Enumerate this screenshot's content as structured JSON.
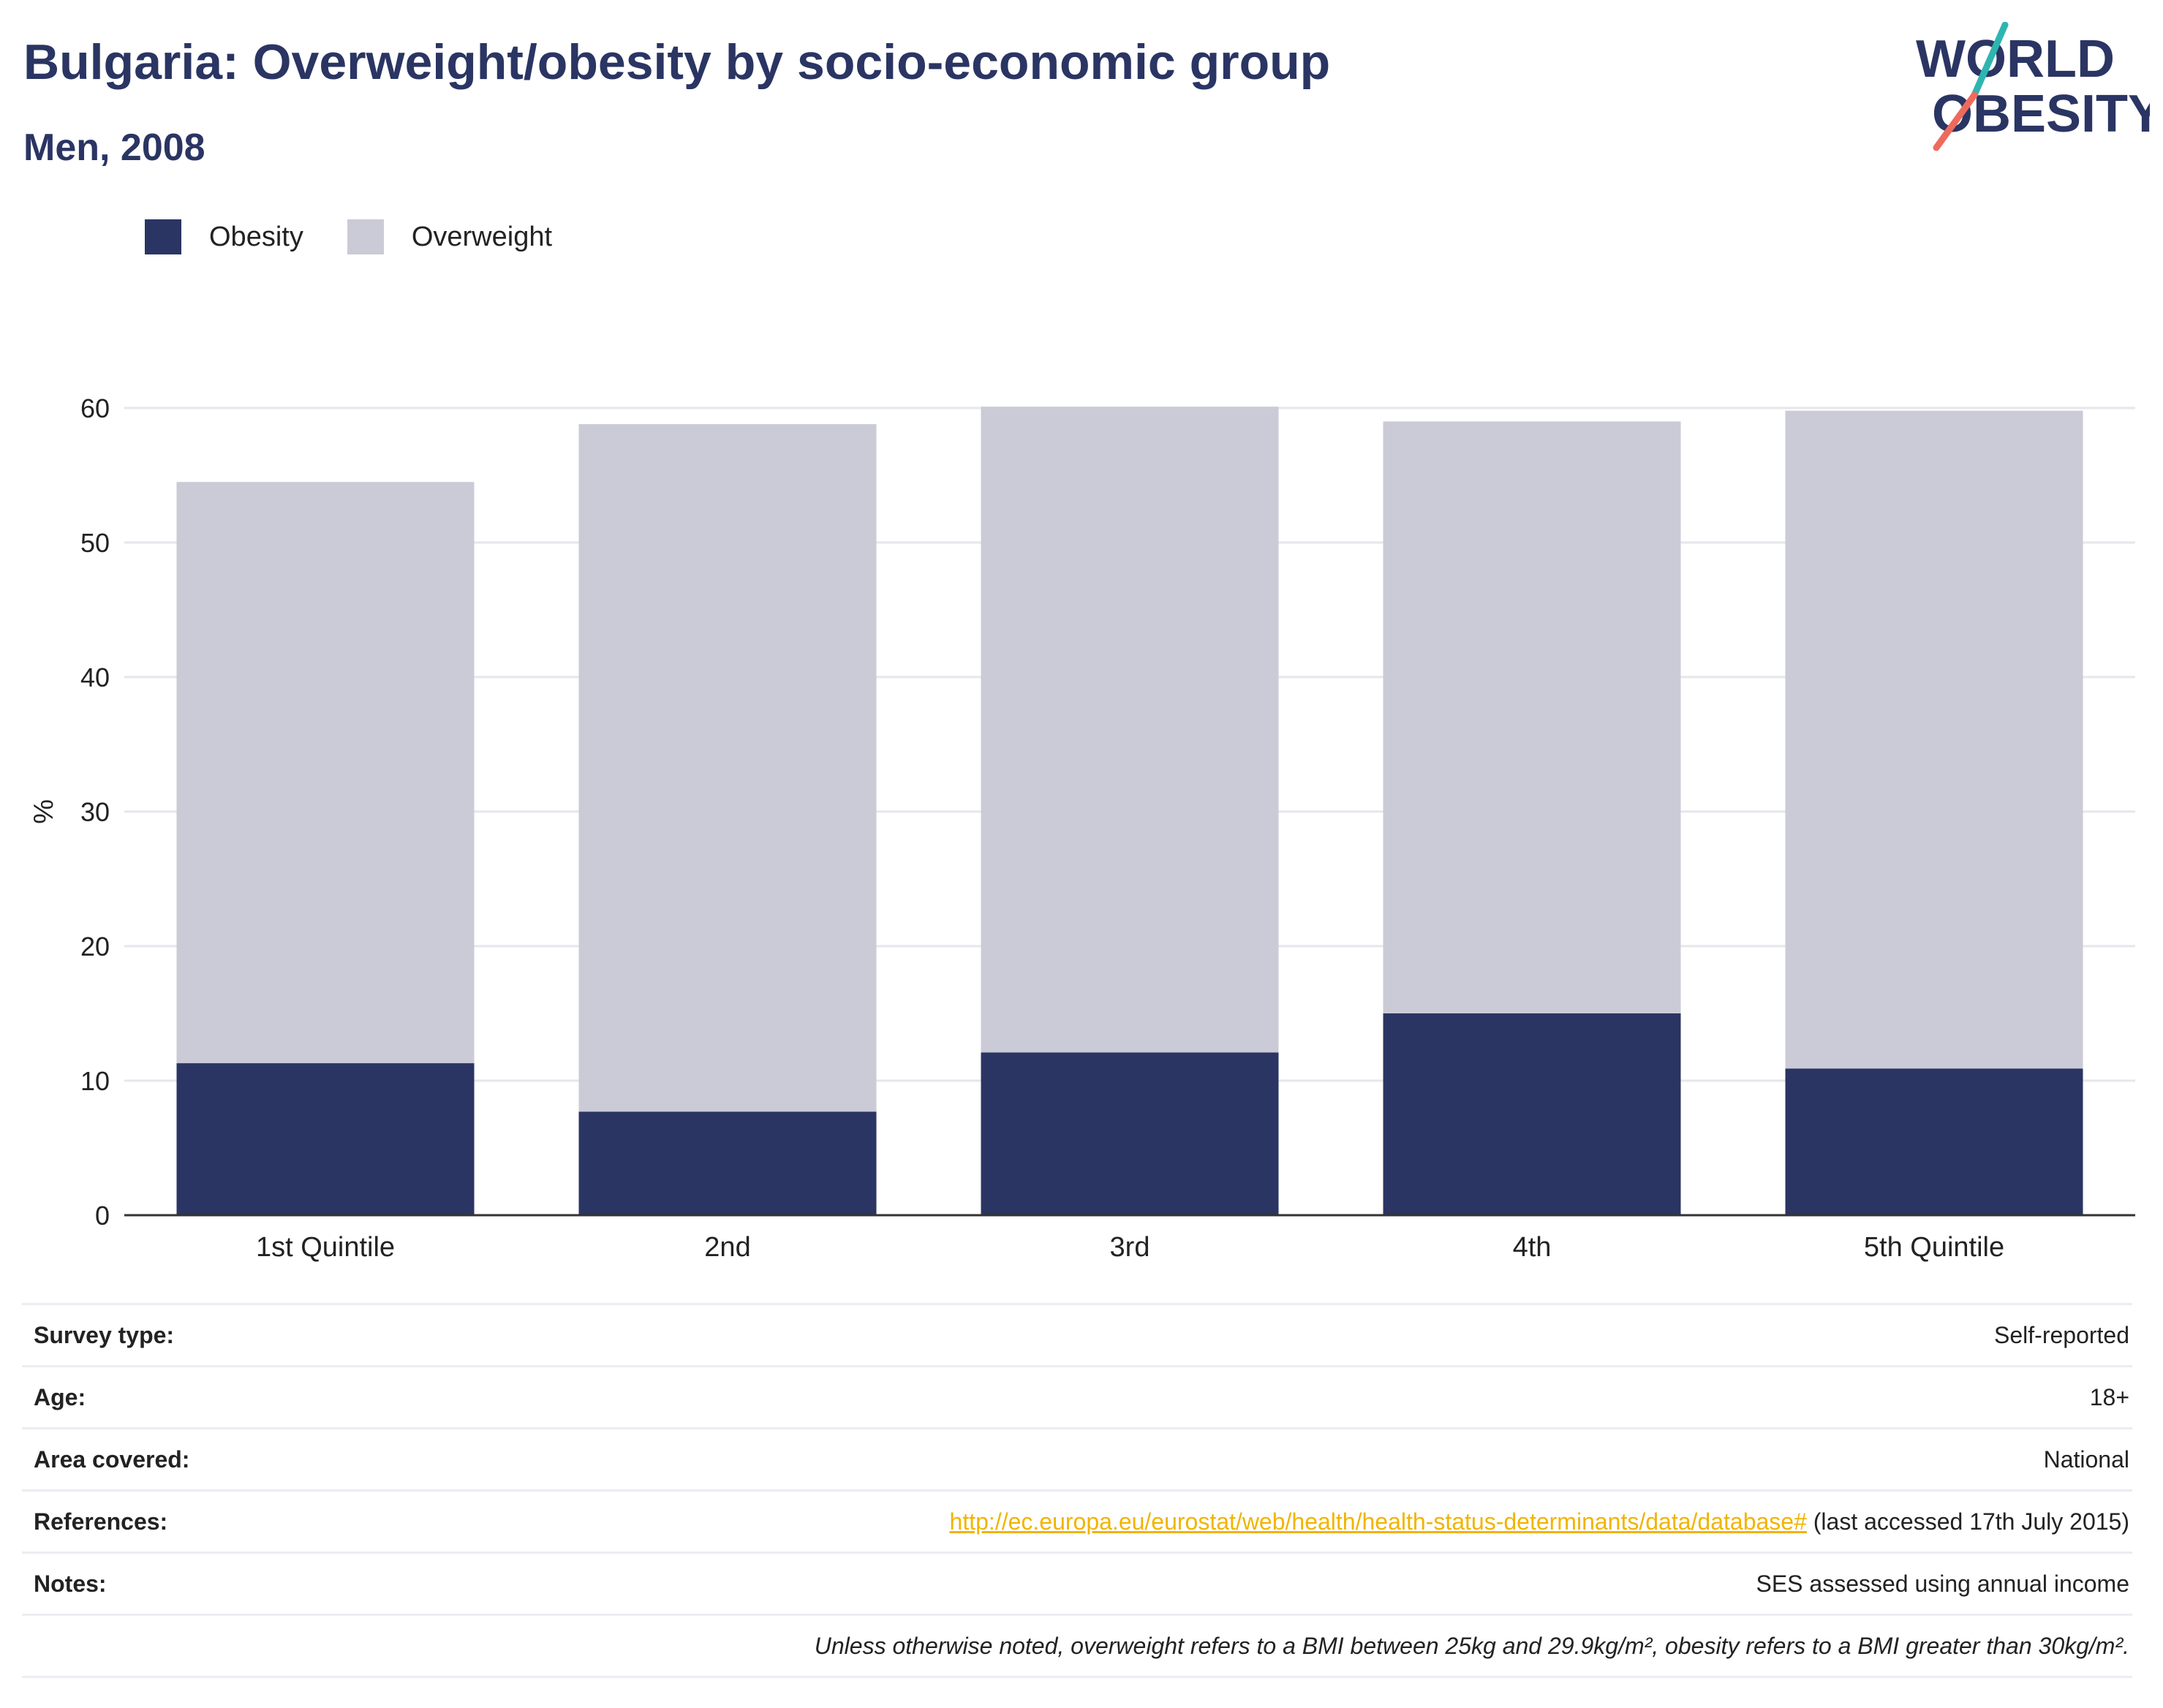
{
  "header": {
    "title": "Bulgaria: Overweight/obesity by socio-economic group",
    "subtitle": "Men, 2008"
  },
  "logo": {
    "line1": "WORLD",
    "line2": "OBESITY"
  },
  "colors": {
    "obesity": "#2a3563",
    "overweight": "#cacbd6",
    "accent_teal": "#2fb5b0",
    "accent_coral": "#ee6b5c",
    "link": "#f0b400"
  },
  "legend": [
    {
      "label": "Obesity",
      "color": "#2a3563"
    },
    {
      "label": "Overweight",
      "color": "#cacbd6"
    }
  ],
  "chart_data": {
    "type": "bar",
    "stacked": true,
    "categories": [
      "1st Quintile",
      "2nd",
      "3rd",
      "4th",
      "5th Quintile"
    ],
    "series": [
      {
        "name": "Obesity",
        "values": [
          11.3,
          7.7,
          12.1,
          15.0,
          10.9
        ]
      },
      {
        "name": "Overweight",
        "values": [
          43.2,
          51.1,
          48.0,
          44.0,
          48.9
        ]
      }
    ],
    "ylabel": "%",
    "ylim": [
      0,
      60
    ],
    "yticks": [
      0,
      10,
      20,
      30,
      40,
      50,
      60
    ],
    "grid": true,
    "legend_position": "top-left"
  },
  "info": {
    "survey_type": {
      "label": "Survey type:",
      "value": "Self-reported"
    },
    "age": {
      "label": "Age:",
      "value": "18+"
    },
    "area": {
      "label": "Area covered:",
      "value": "National"
    },
    "references": {
      "label": "References:",
      "link": "http://ec.europa.eu/eurostat/web/health/health-status-determinants/data/database#",
      "suffix": " (last accessed 17th July 2015)"
    },
    "notes": {
      "label": "Notes:",
      "value": "SES assessed using annual income"
    },
    "footnote": "Unless otherwise noted, overweight refers to a BMI between 25kg and 29.9kg/m², obesity refers to a BMI greater than 30kg/m²."
  }
}
